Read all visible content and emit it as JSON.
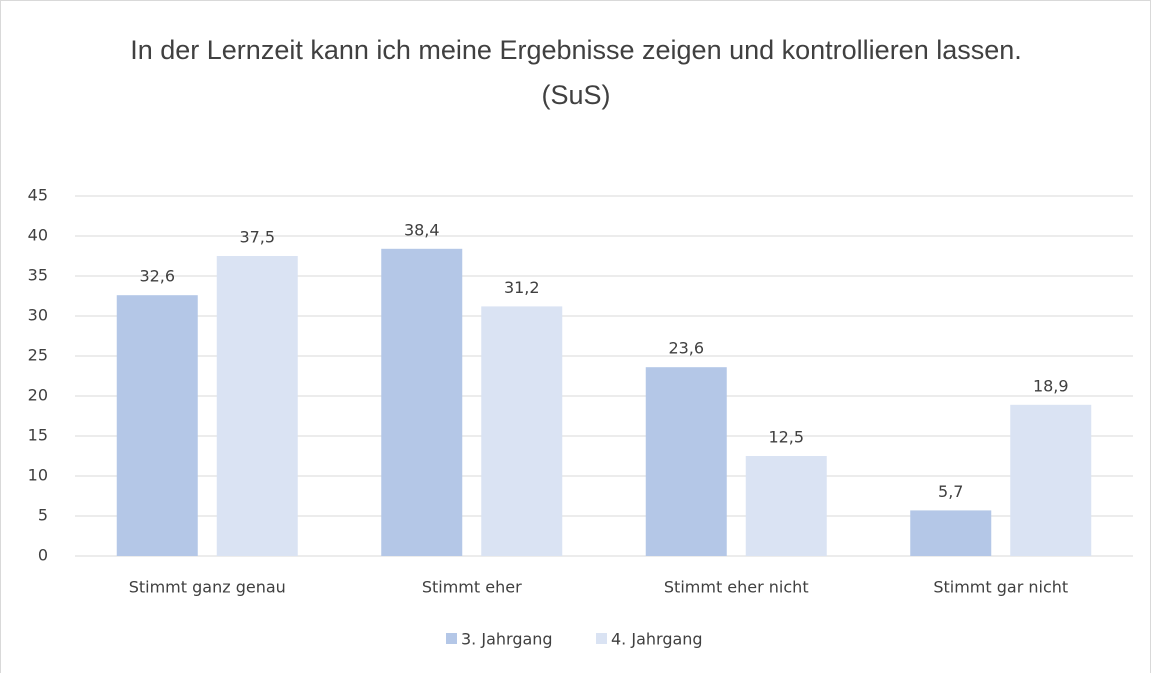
{
  "chart_data": {
    "type": "bar",
    "title": "In der Lernzeit kann ich meine Ergebnisse zeigen und kontrollieren lassen. (SuS)",
    "categories": [
      "Stimmt ganz genau",
      "Stimmt eher",
      "Stimmt eher nicht",
      "Stimmt gar nicht"
    ],
    "series": [
      {
        "name": "3. Jahrgang",
        "color": "#b4c7e7",
        "values": [
          32.6,
          38.4,
          23.6,
          5.7
        ],
        "value_labels": [
          "32,6",
          "38,4",
          "23,6",
          "5,7"
        ]
      },
      {
        "name": "4. Jahrgang",
        "color": "#dae3f3",
        "values": [
          37.5,
          31.2,
          12.5,
          18.9
        ],
        "value_labels": [
          "37,5",
          "31,2",
          "12,5",
          "18,9"
        ]
      }
    ],
    "ylim": [
      0,
      45
    ],
    "yticks": [
      0,
      5,
      10,
      15,
      20,
      25,
      30,
      35,
      40,
      45
    ],
    "grid": true,
    "legend": "bottom"
  }
}
